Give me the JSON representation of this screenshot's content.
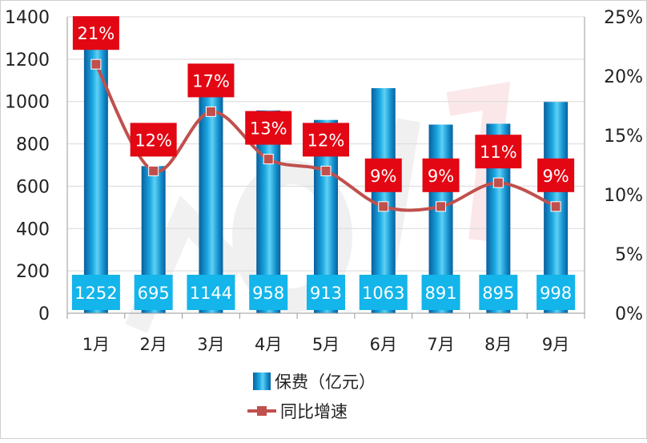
{
  "chart_data": {
    "type": "bar+line",
    "categories": [
      "1月",
      "2月",
      "3月",
      "4月",
      "5月",
      "6月",
      "7月",
      "8月",
      "9月"
    ],
    "series": [
      {
        "name": "保费（亿元）",
        "type": "bar",
        "axis": "left",
        "values": [
          1252,
          695,
          1144,
          958,
          913,
          1063,
          891,
          895,
          998
        ],
        "labels": [
          "1252",
          "695",
          "1144",
          "958",
          "913",
          "1063",
          "891",
          "895",
          "998"
        ],
        "color": "#1aa3dc"
      },
      {
        "name": "同比增速",
        "type": "line",
        "axis": "right",
        "values": [
          0.21,
          0.12,
          0.17,
          0.13,
          0.12,
          0.09,
          0.09,
          0.11,
          0.09
        ],
        "labels": [
          "21%",
          "12%",
          "17%",
          "13%",
          "12%",
          "9%",
          "9%",
          "11%",
          "9%"
        ],
        "color": "#c0504d"
      }
    ],
    "y_left": {
      "min": 0,
      "max": 1400,
      "ticks": [
        "0",
        "200",
        "400",
        "600",
        "800",
        "1000",
        "1200",
        "1400"
      ]
    },
    "y_right": {
      "min": 0,
      "max": 0.25,
      "ticks": [
        "0%",
        "5%",
        "10%",
        "15%",
        "20%",
        "25%"
      ]
    },
    "grid": true,
    "legend_position": "bottom",
    "label_colors": {
      "bar_label_bg": "#13b5ea",
      "line_label_bg": "#e30613"
    }
  }
}
